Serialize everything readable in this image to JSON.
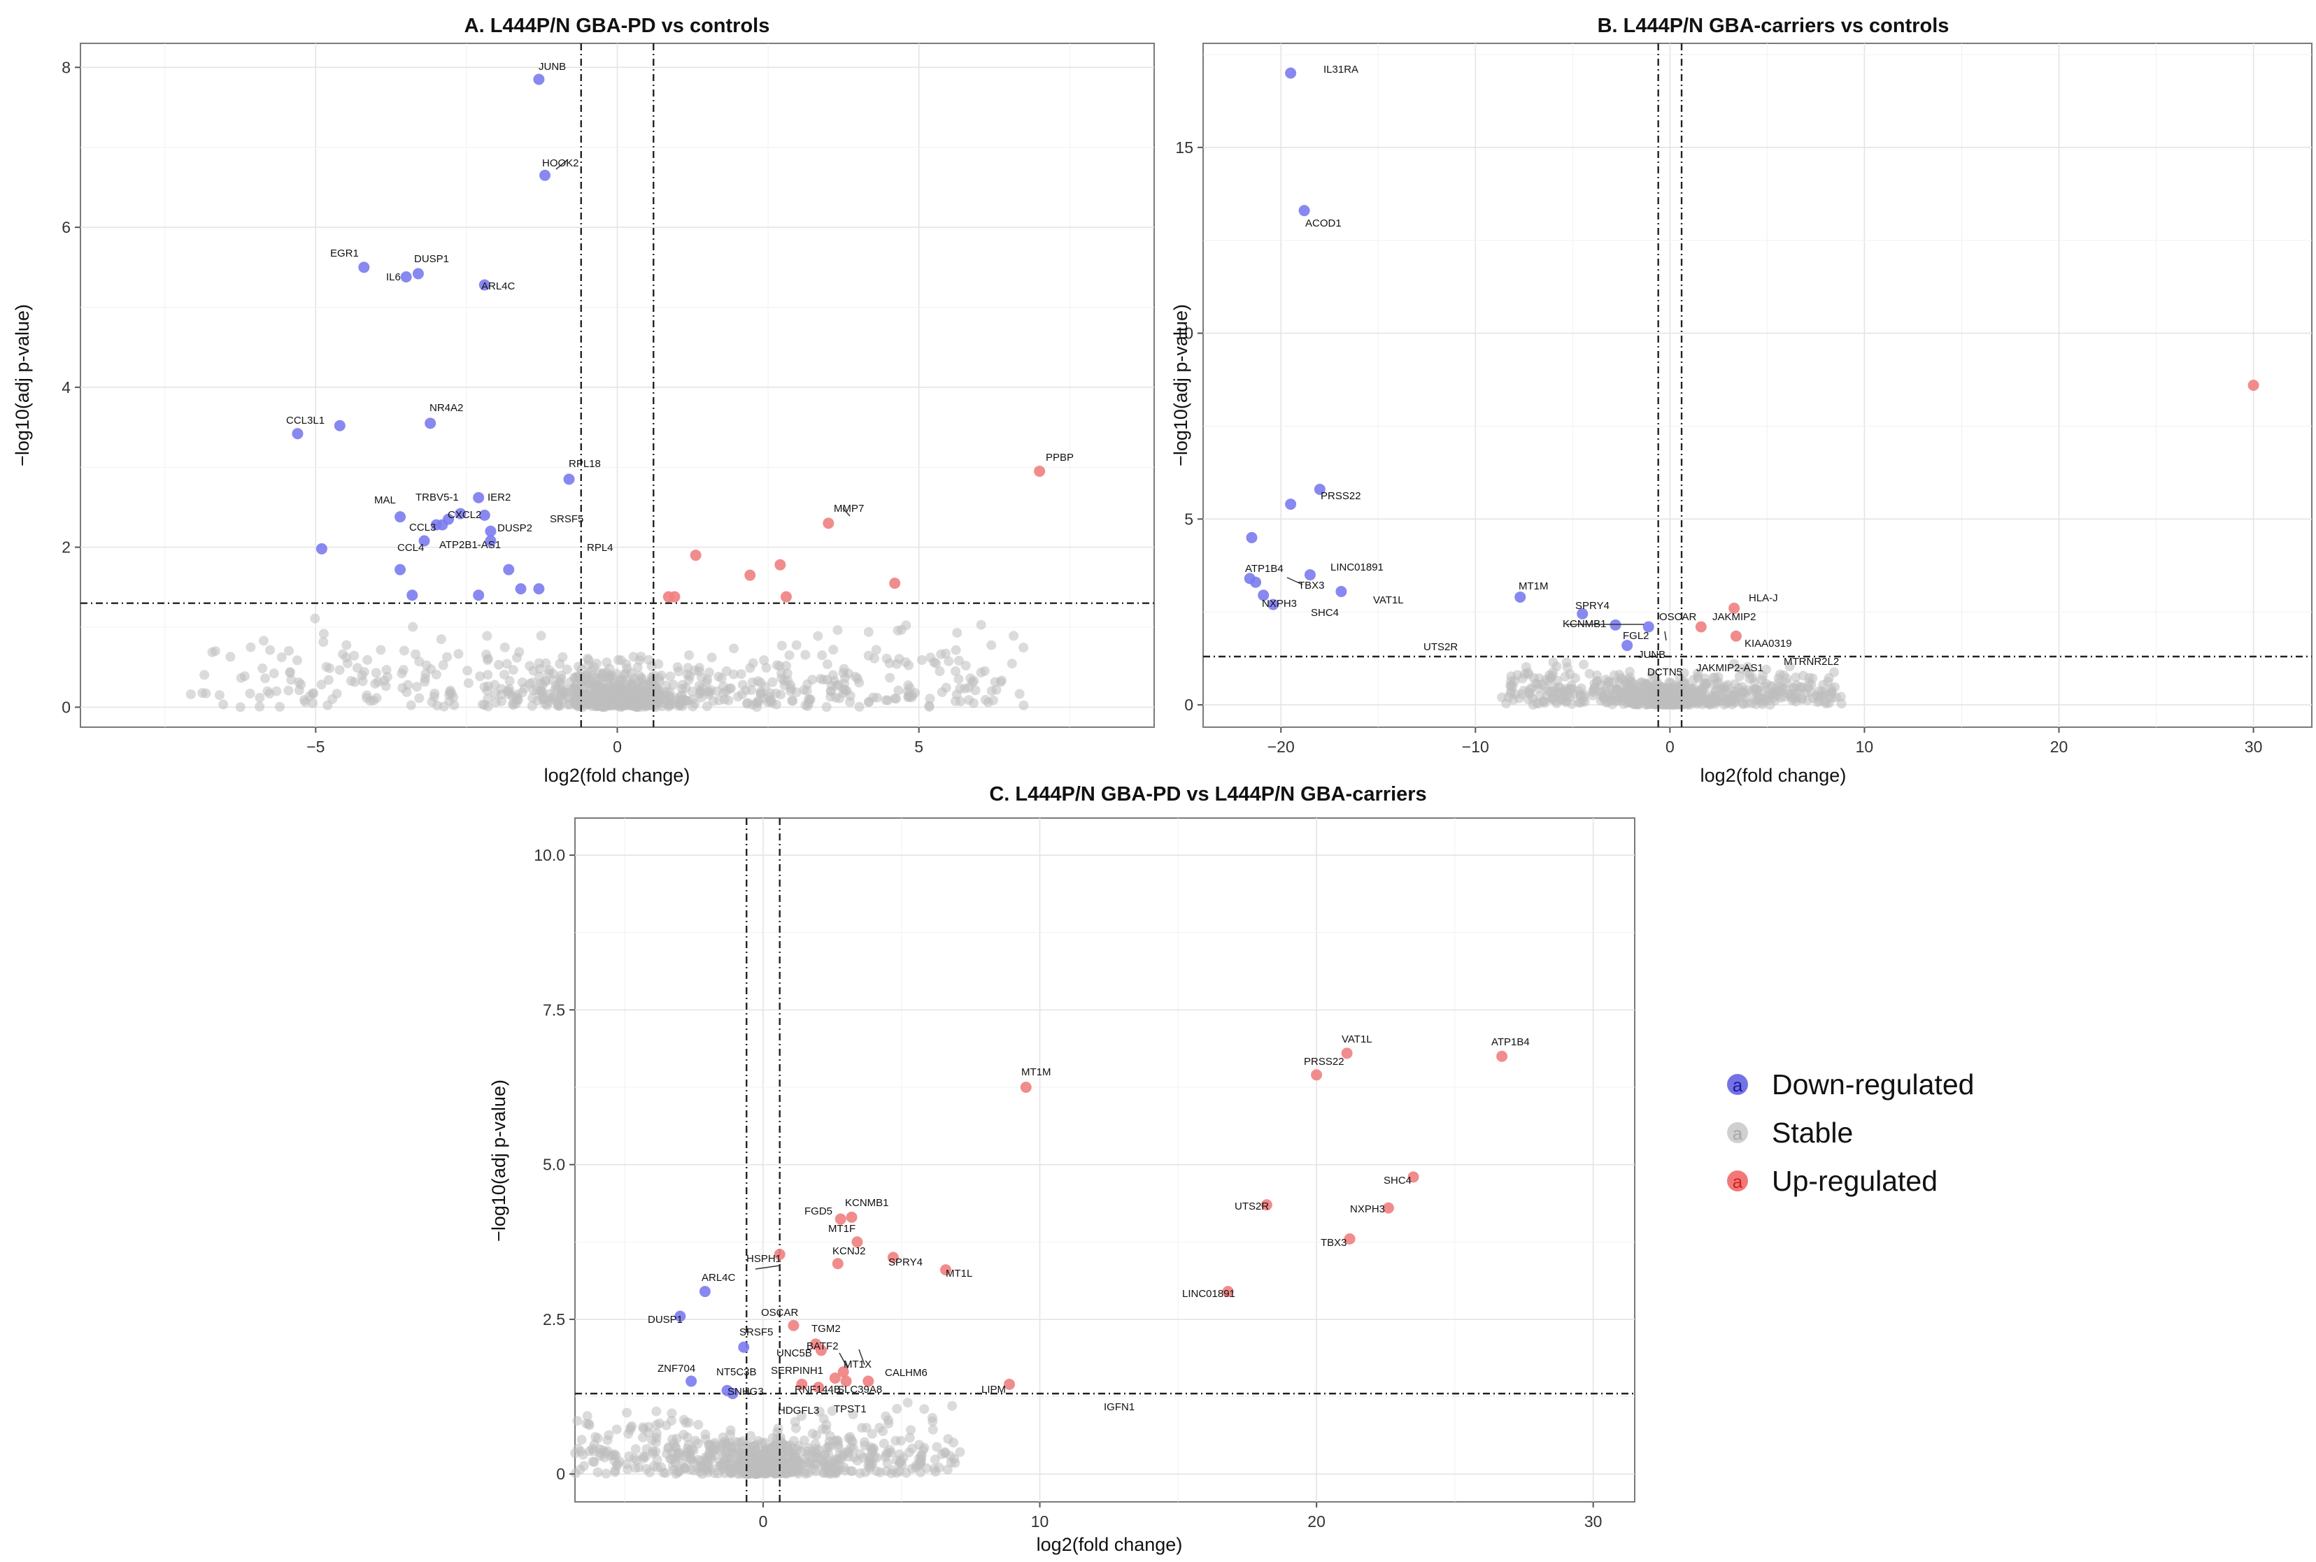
{
  "colors": {
    "down": "#7b7bef",
    "stable": "#bdbdbd",
    "up": "#f08080"
  },
  "legend": {
    "items": [
      {
        "label": "Down-regulated",
        "color": "#5a5ae0",
        "glyph": "a"
      },
      {
        "label": "Stable",
        "color": "#c8c8c8",
        "glyph": "a"
      },
      {
        "label": "Up-regulated",
        "color": "#f06060",
        "glyph": "a"
      }
    ]
  },
  "chart_data": [
    {
      "type": "scatter",
      "title": "A. L444P/N GBA-PD vs controls",
      "xlabel": "log2(fold change)",
      "ylabel": "−log10(adj p-value)",
      "xlim": [
        -8.9,
        8.9
      ],
      "ylim": [
        -0.25,
        8.3
      ],
      "xticks": [
        -5,
        0,
        5
      ],
      "xticklabels": [
        "−5",
        "0",
        "5"
      ],
      "yticks": [
        0,
        2,
        4,
        6,
        8
      ],
      "yticklabels": [
        "0",
        "2",
        "4",
        "6",
        "8"
      ],
      "vlines": [
        -0.6,
        0.6
      ],
      "hline": 1.3,
      "points": [
        {
          "x": -1.3,
          "y": 7.85,
          "cls": "down",
          "label": "JUNB"
        },
        {
          "x": -1.2,
          "y": 6.65,
          "cls": "down",
          "label": "HOOK2"
        },
        {
          "x": -4.2,
          "y": 5.5,
          "cls": "down",
          "label": "EGR1"
        },
        {
          "x": -3.3,
          "y": 5.42,
          "cls": "down",
          "label": "DUSP1"
        },
        {
          "x": -3.5,
          "y": 5.38,
          "cls": "down",
          "label": "IL6"
        },
        {
          "x": -2.2,
          "y": 5.28,
          "cls": "down",
          "label": "ARL4C"
        },
        {
          "x": -5.3,
          "y": 3.42,
          "cls": "down",
          "label": "CCL3L1"
        },
        {
          "x": -4.6,
          "y": 3.52,
          "cls": "down",
          "label": "CCL3L1"
        },
        {
          "x": -3.1,
          "y": 3.55,
          "cls": "down",
          "label": "NR4A2"
        },
        {
          "x": -0.8,
          "y": 2.85,
          "cls": "down",
          "label": "RPL18"
        },
        {
          "x": -2.3,
          "y": 2.62,
          "cls": "down",
          "label": "IER2"
        },
        {
          "x": -2.6,
          "y": 2.42,
          "cls": "down",
          "label": "TRBV5-1"
        },
        {
          "x": -2.8,
          "y": 2.35,
          "cls": "down",
          "label": "TRBV5-1"
        },
        {
          "x": -2.2,
          "y": 2.4,
          "cls": "down",
          "label": "IER2"
        },
        {
          "x": -3.6,
          "y": 2.38,
          "cls": "down",
          "label": "MAL"
        },
        {
          "x": -3.0,
          "y": 2.28,
          "cls": "down",
          "label": "CXCL2"
        },
        {
          "x": -2.9,
          "y": 2.28,
          "cls": "down",
          "label": "CXCL2"
        },
        {
          "x": -2.1,
          "y": 2.2,
          "cls": "down",
          "label": "DUSP2"
        },
        {
          "x": -2.1,
          "y": 2.08,
          "cls": "down",
          "label": "ATP2B1-AS1"
        },
        {
          "x": -3.2,
          "y": 2.08,
          "cls": "down",
          "label": "CCL3"
        },
        {
          "x": -4.9,
          "y": 1.98,
          "cls": "down",
          "label": ""
        },
        {
          "x": -3.6,
          "y": 1.72,
          "cls": "down",
          "label": "CCL4"
        },
        {
          "x": -1.8,
          "y": 1.72,
          "cls": "down",
          "label": ""
        },
        {
          "x": -1.6,
          "y": 1.48,
          "cls": "down",
          "label": ""
        },
        {
          "x": -1.3,
          "y": 1.48,
          "cls": "down",
          "label": ""
        },
        {
          "x": -3.4,
          "y": 1.4,
          "cls": "down",
          "label": ""
        },
        {
          "x": -2.3,
          "y": 1.4,
          "cls": "down",
          "label": ""
        },
        {
          "x": 7.0,
          "y": 2.95,
          "cls": "up",
          "label": "PPBP"
        },
        {
          "x": 3.5,
          "y": 2.3,
          "cls": "up",
          "label": "MMP7"
        },
        {
          "x": 1.3,
          "y": 1.9,
          "cls": "up",
          "label": ""
        },
        {
          "x": 2.7,
          "y": 1.78,
          "cls": "up",
          "label": ""
        },
        {
          "x": 2.2,
          "y": 1.65,
          "cls": "up",
          "label": ""
        },
        {
          "x": 4.6,
          "y": 1.55,
          "cls": "up",
          "label": ""
        },
        {
          "x": 2.8,
          "y": 1.38,
          "cls": "up",
          "label": ""
        },
        {
          "x": 0.85,
          "y": 1.38,
          "cls": "up",
          "label": ""
        },
        {
          "x": 0.95,
          "y": 1.38,
          "cls": "up",
          "label": ""
        }
      ],
      "label_texts": [
        "JUNB",
        "HOOK2",
        "EGR1",
        "DUSP1",
        "IL6",
        "ARL4C",
        "CCL3L1",
        "NR4A2",
        "RPL18",
        "MAL",
        "TRBV5-1",
        "IER2",
        "CXCL2",
        "CCL3",
        "DUSP2",
        "SRSF5",
        "ATP2B1-AS1",
        "CCL4",
        "RPL4",
        "PPBP",
        "MMP7"
      ]
    },
    {
      "type": "scatter",
      "title": "B. L444P/N GBA-carriers vs controls",
      "xlabel": "log2(fold change)",
      "ylabel": "−log10(adj p-value)",
      "xlim": [
        -24,
        33
      ],
      "ylim": [
        -0.6,
        17.8
      ],
      "xticks": [
        -20,
        -10,
        0,
        10,
        20,
        30
      ],
      "xticklabels": [
        "−20",
        "−10",
        "0",
        "10",
        "20",
        "30"
      ],
      "yticks": [
        0,
        5,
        10,
        15
      ],
      "yticklabels": [
        "0",
        "5",
        "10",
        "15"
      ],
      "vlines": [
        -0.6,
        0.6
      ],
      "hline": 1.3,
      "points": [
        {
          "x": -19.5,
          "y": 17.0,
          "cls": "down",
          "label": "IL31RA"
        },
        {
          "x": -18.8,
          "y": 13.3,
          "cls": "down",
          "label": "ACOD1"
        },
        {
          "x": -18.0,
          "y": 5.8,
          "cls": "down",
          "label": "PRSS22"
        },
        {
          "x": -19.5,
          "y": 5.4,
          "cls": "down",
          "label": "PRSS22"
        },
        {
          "x": -21.5,
          "y": 4.5,
          "cls": "down",
          "label": "ATP1B4"
        },
        {
          "x": -21.6,
          "y": 3.4,
          "cls": "down",
          "label": "ATP1B4"
        },
        {
          "x": -21.3,
          "y": 3.3,
          "cls": "down",
          "label": "TBX3"
        },
        {
          "x": -18.5,
          "y": 3.5,
          "cls": "down",
          "label": "LINC01891"
        },
        {
          "x": -20.9,
          "y": 2.95,
          "cls": "down",
          "label": "NXPH3"
        },
        {
          "x": -20.4,
          "y": 2.7,
          "cls": "down",
          "label": "SHC4"
        },
        {
          "x": -16.9,
          "y": 3.05,
          "cls": "down",
          "label": "VAT1L"
        },
        {
          "x": -7.7,
          "y": 2.9,
          "cls": "down",
          "label": "MT1M"
        },
        {
          "x": -4.5,
          "y": 2.45,
          "cls": "down",
          "label": "SPRY4"
        },
        {
          "x": -2.8,
          "y": 2.15,
          "cls": "down",
          "label": "KCNMB1"
        },
        {
          "x": -1.1,
          "y": 2.1,
          "cls": "down",
          "label": "OSCAR"
        },
        {
          "x": -2.2,
          "y": 1.6,
          "cls": "down",
          "label": "FGL2"
        },
        {
          "x": 3.3,
          "y": 2.6,
          "cls": "up",
          "label": "HLA-J"
        },
        {
          "x": 1.6,
          "y": 2.1,
          "cls": "up",
          "label": "JAKMIP2"
        },
        {
          "x": 3.4,
          "y": 1.85,
          "cls": "up",
          "label": "KIAA0319"
        },
        {
          "x": 30.0,
          "y": 8.6,
          "cls": "up",
          "label": ""
        }
      ],
      "label_texts": [
        "IL31RA",
        "ACOD1",
        "PRSS22",
        "ATP1B4",
        "LINC01891",
        "TBX3",
        "NXPH3",
        "SHC4",
        "VAT1L",
        "MT1M",
        "SPRY4",
        "KCNMB1",
        "OSCAR",
        "FGL2",
        "JUNB",
        "DCTN5",
        "UTS2R",
        "JAKMIP2",
        "HLA-J",
        "KIAA0319",
        "JAKMIP2-AS1",
        "MTRNR2L2"
      ]
    },
    {
      "type": "scatter",
      "title": "C. L444P/N GBA-PD vs L444P/N GBA-carriers",
      "xlabel": "log2(fold change)",
      "ylabel": "−log10(adj p-value)",
      "xlim": [
        -6.8,
        31.5
      ],
      "ylim": [
        -0.45,
        10.6
      ],
      "xticks": [
        0,
        10,
        20,
        30
      ],
      "xticklabels": [
        "0",
        "10",
        "20",
        "30"
      ],
      "yticks": [
        0,
        2.5,
        5.0,
        7.5,
        10.0
      ],
      "yticklabels": [
        "0",
        "2.5",
        "5.0",
        "7.5",
        "10.0"
      ],
      "vlines": [
        -0.6,
        0.6
      ],
      "hline": 1.3,
      "points": [
        {
          "x": 21.1,
          "y": 6.8,
          "cls": "up",
          "label": "VAT1L"
        },
        {
          "x": 26.7,
          "y": 6.75,
          "cls": "up",
          "label": "ATP1B4"
        },
        {
          "x": 20.0,
          "y": 6.45,
          "cls": "up",
          "label": "PRSS22"
        },
        {
          "x": 9.5,
          "y": 6.25,
          "cls": "up",
          "label": "MT1M"
        },
        {
          "x": 23.5,
          "y": 4.8,
          "cls": "up",
          "label": "SHC4"
        },
        {
          "x": 18.2,
          "y": 4.35,
          "cls": "up",
          "label": "UTS2R"
        },
        {
          "x": 22.6,
          "y": 4.3,
          "cls": "up",
          "label": "NXPH3"
        },
        {
          "x": 21.2,
          "y": 3.8,
          "cls": "up",
          "label": "TBX3"
        },
        {
          "x": 16.8,
          "y": 2.95,
          "cls": "up",
          "label": "LINC01891"
        },
        {
          "x": 3.2,
          "y": 4.15,
          "cls": "up",
          "label": "KCNMB1"
        },
        {
          "x": 2.8,
          "y": 4.12,
          "cls": "up",
          "label": "FGD5"
        },
        {
          "x": 3.4,
          "y": 3.75,
          "cls": "up",
          "label": "MT1F"
        },
        {
          "x": 4.7,
          "y": 3.5,
          "cls": "up",
          "label": "SPRY4"
        },
        {
          "x": 2.7,
          "y": 3.4,
          "cls": "up",
          "label": "KCNJ2"
        },
        {
          "x": 6.6,
          "y": 3.3,
          "cls": "up",
          "label": "MT1L"
        },
        {
          "x": 0.6,
          "y": 3.55,
          "cls": "up",
          "label": "HSPH1"
        },
        {
          "x": 1.1,
          "y": 2.4,
          "cls": "up",
          "label": "OSCAR"
        },
        {
          "x": 1.9,
          "y": 2.1,
          "cls": "up",
          "label": "TGM2"
        },
        {
          "x": 2.1,
          "y": 2.0,
          "cls": "up",
          "label": "BATF2"
        },
        {
          "x": 2.9,
          "y": 1.65,
          "cls": "up",
          "label": "MT1X"
        },
        {
          "x": 2.6,
          "y": 1.55,
          "cls": "up",
          "label": "SERPINH1"
        },
        {
          "x": 3.8,
          "y": 1.5,
          "cls": "up",
          "label": "CALHM6"
        },
        {
          "x": 3.0,
          "y": 1.5,
          "cls": "up",
          "label": "SLC39A8"
        },
        {
          "x": 1.4,
          "y": 1.45,
          "cls": "up",
          "label": "RNF144B"
        },
        {
          "x": 2.0,
          "y": 1.4,
          "cls": "up",
          "label": "RNF144B"
        },
        {
          "x": 8.9,
          "y": 1.45,
          "cls": "up",
          "label": "LIPM"
        },
        {
          "x": -3.0,
          "y": 2.55,
          "cls": "down",
          "label": "DUSP1"
        },
        {
          "x": -2.1,
          "y": 2.95,
          "cls": "down",
          "label": "ARL4C"
        },
        {
          "x": -2.6,
          "y": 1.5,
          "cls": "down",
          "label": "ZNF704"
        },
        {
          "x": -1.3,
          "y": 1.35,
          "cls": "down",
          "label": "NT5C3B"
        },
        {
          "x": -1.1,
          "y": 1.3,
          "cls": "down",
          "label": "SNHG3"
        },
        {
          "x": -0.7,
          "y": 2.05,
          "cls": "down",
          "label": "SRSF5"
        }
      ],
      "label_texts": [
        "VAT1L",
        "ATP1B4",
        "PRSS22",
        "MT1M",
        "SHC4",
        "UTS2R",
        "NXPH3",
        "TBX3",
        "LINC01891",
        "KCNMB1",
        "FGD5",
        "MT1F",
        "SPRY4",
        "KCNJ2",
        "MT1L",
        "HSPH1",
        "ARL4C",
        "DUSP1",
        "OSCAR",
        "SRSF5",
        "TGM2",
        "BATF2",
        "UNC5B",
        "MT1X",
        "SERPINH1",
        "CALHM6",
        "ZNF704",
        "NT5C3B",
        "SNHG3",
        "RNF144B",
        "SLC39A8",
        "TPST1",
        "HDGFL3",
        "LIPM",
        "IGFN1"
      ]
    }
  ]
}
